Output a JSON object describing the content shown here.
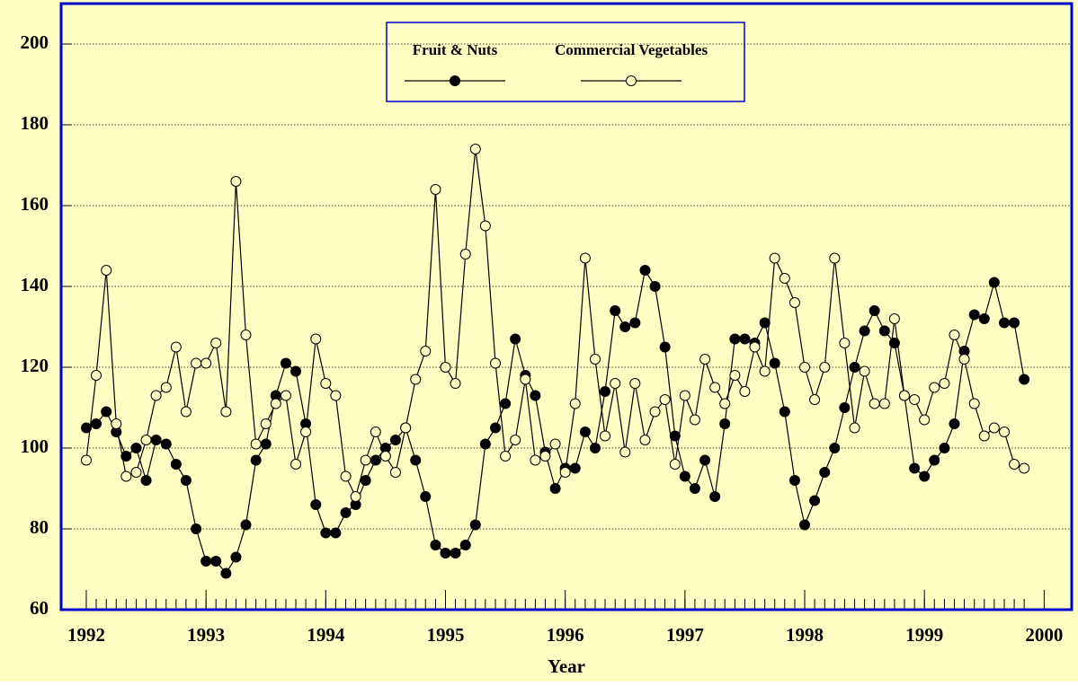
{
  "chart_data": {
    "type": "line",
    "xlabel": "Year",
    "x": [
      1992,
      1992.083,
      1992.167,
      1992.25,
      1992.333,
      1992.417,
      1992.5,
      1992.583,
      1992.667,
      1992.75,
      1992.833,
      1992.917,
      1993,
      1993.083,
      1993.167,
      1993.25,
      1993.333,
      1993.417,
      1993.5,
      1993.583,
      1993.667,
      1993.75,
      1993.833,
      1993.917,
      1994,
      1994.083,
      1994.167,
      1994.25,
      1994.333,
      1994.417,
      1994.5,
      1994.583,
      1994.667,
      1994.75,
      1994.833,
      1994.917,
      1995,
      1995.083,
      1995.167,
      1995.25,
      1995.333,
      1995.417,
      1995.5,
      1995.583,
      1995.667,
      1995.75,
      1995.833,
      1995.917,
      1996,
      1996.083,
      1996.167,
      1996.25,
      1996.333,
      1996.417,
      1996.5,
      1996.583,
      1996.667,
      1996.75,
      1996.833,
      1996.917,
      1997,
      1997.083,
      1997.167,
      1997.25,
      1997.333,
      1997.417,
      1997.5,
      1997.583,
      1997.667,
      1997.75,
      1997.833,
      1997.917,
      1998,
      1998.083,
      1998.167,
      1998.25,
      1998.333,
      1998.417,
      1998.5,
      1998.583,
      1998.667,
      1998.75,
      1998.833,
      1998.917,
      1999,
      1999.083,
      1999.167,
      1999.25,
      1999.333,
      1999.417,
      1999.5,
      1999.583,
      1999.667,
      1999.75,
      1999.833
    ],
    "series": [
      {
        "name": "Fruit & Nuts",
        "color": "#000000",
        "marker": "filled",
        "values": [
          105,
          106,
          109,
          104,
          98,
          100,
          92,
          102,
          101,
          96,
          92,
          80,
          72,
          72,
          69,
          73,
          81,
          97,
          101,
          113,
          121,
          119,
          106,
          86,
          79,
          79,
          84,
          86,
          92,
          97,
          100,
          102,
          105,
          97,
          88,
          76,
          74,
          74,
          76,
          81,
          101,
          105,
          111,
          127,
          118,
          113,
          99,
          90,
          95,
          95,
          104,
          100,
          114,
          134,
          130,
          131,
          144,
          140,
          125,
          103,
          93,
          90,
          97,
          88,
          106,
          127,
          127,
          126,
          131,
          121,
          109,
          92,
          81,
          87,
          94,
          100,
          110,
          120,
          129,
          134,
          129,
          126,
          113,
          95,
          93,
          97,
          100,
          106,
          124,
          133,
          132,
          141,
          131,
          131,
          117
        ]
      },
      {
        "name": "Commercial Vegetables",
        "color": "#000000",
        "marker": "open",
        "values": [
          97,
          118,
          144,
          106,
          93,
          94,
          102,
          113,
          115,
          125,
          109,
          121,
          121,
          126,
          109,
          166,
          128,
          101,
          106,
          111,
          113,
          96,
          104,
          127,
          116,
          113,
          93,
          88,
          97,
          104,
          98,
          94,
          105,
          117,
          124,
          164,
          120,
          116,
          148,
          174,
          155,
          121,
          98,
          102,
          117,
          97,
          98,
          101,
          94,
          111,
          147,
          122,
          103,
          116,
          99,
          116,
          102,
          109,
          112,
          96,
          113,
          107,
          122,
          115,
          111,
          118,
          114,
          125,
          119,
          147,
          142,
          136,
          120,
          112,
          120,
          147,
          126,
          105,
          119,
          111,
          111,
          132,
          113,
          112,
          107,
          115,
          116,
          128,
          122,
          111,
          103,
          105,
          104,
          96,
          95
        ]
      }
    ],
    "xlim": [
      1991.79,
      2000.23
    ],
    "xticks": [
      1992,
      1993,
      1994,
      1995,
      1996,
      1997,
      1998,
      1999,
      2000
    ],
    "ylim": [
      60,
      210
    ],
    "yticks": [
      60,
      80,
      100,
      120,
      140,
      160,
      180,
      200
    ],
    "grid": true,
    "legend": "upper center",
    "background": "#ffffc4",
    "frame_color": "#0000cc"
  }
}
